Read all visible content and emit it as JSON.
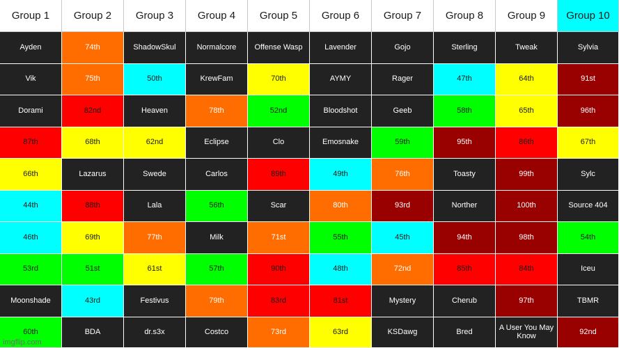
{
  "colors": {
    "dark": "#222222",
    "orange": "#ff6d00",
    "cyan": "#00ffff",
    "yellow": "#ffff00",
    "red": "#ff0000",
    "green": "#00ff00",
    "maroon": "#990000",
    "header": "#ffffff"
  },
  "headers": [
    {
      "label": "Group 1",
      "color": "header"
    },
    {
      "label": "Group 2",
      "color": "header"
    },
    {
      "label": "Group 3",
      "color": "header"
    },
    {
      "label": "Group 4",
      "color": "header"
    },
    {
      "label": "Group 5",
      "color": "header"
    },
    {
      "label": "Group 6",
      "color": "header"
    },
    {
      "label": "Group 7",
      "color": "header"
    },
    {
      "label": "Group 8",
      "color": "header"
    },
    {
      "label": "Group 9",
      "color": "header"
    },
    {
      "label": "Group 10",
      "color": "cyan"
    }
  ],
  "rows": [
    [
      {
        "text": "Ayden",
        "color": "dark"
      },
      {
        "text": "74th",
        "color": "orange"
      },
      {
        "text": "ShadowSkul",
        "color": "dark"
      },
      {
        "text": "Normalcore",
        "color": "dark"
      },
      {
        "text": "Offense Wasp",
        "color": "dark"
      },
      {
        "text": "Lavender",
        "color": "dark"
      },
      {
        "text": "Gojo",
        "color": "dark"
      },
      {
        "text": "Sterling",
        "color": "dark"
      },
      {
        "text": "Tweak",
        "color": "dark"
      },
      {
        "text": "Sylvia",
        "color": "dark"
      }
    ],
    [
      {
        "text": "Vik",
        "color": "dark"
      },
      {
        "text": "75th",
        "color": "orange"
      },
      {
        "text": "50th",
        "color": "cyan"
      },
      {
        "text": "KrewFam",
        "color": "dark"
      },
      {
        "text": "70th",
        "color": "yellow"
      },
      {
        "text": "AYMY",
        "color": "dark"
      },
      {
        "text": "Rager",
        "color": "dark"
      },
      {
        "text": "47th",
        "color": "cyan"
      },
      {
        "text": "64th",
        "color": "yellow"
      },
      {
        "text": "91st",
        "color": "maroon"
      }
    ],
    [
      {
        "text": "Dorami",
        "color": "dark"
      },
      {
        "text": "82nd",
        "color": "red"
      },
      {
        "text": "Heaven",
        "color": "dark"
      },
      {
        "text": "78th",
        "color": "orange"
      },
      {
        "text": "52nd",
        "color": "green"
      },
      {
        "text": "Bloodshot",
        "color": "dark"
      },
      {
        "text": "Geeb",
        "color": "dark"
      },
      {
        "text": "58th",
        "color": "green"
      },
      {
        "text": "65th",
        "color": "yellow"
      },
      {
        "text": "96th",
        "color": "maroon"
      }
    ],
    [
      {
        "text": "87th",
        "color": "red"
      },
      {
        "text": "68th",
        "color": "yellow"
      },
      {
        "text": "62nd",
        "color": "yellow"
      },
      {
        "text": "Eclipse",
        "color": "dark"
      },
      {
        "text": "Clo",
        "color": "dark"
      },
      {
        "text": "Emosnake",
        "color": "dark"
      },
      {
        "text": "59th",
        "color": "green"
      },
      {
        "text": "95th",
        "color": "maroon"
      },
      {
        "text": "86th",
        "color": "red"
      },
      {
        "text": "67th",
        "color": "yellow"
      }
    ],
    [
      {
        "text": "66th",
        "color": "yellow"
      },
      {
        "text": "Lazarus",
        "color": "dark"
      },
      {
        "text": "Swede",
        "color": "dark"
      },
      {
        "text": "Carlos",
        "color": "dark"
      },
      {
        "text": "89th",
        "color": "red"
      },
      {
        "text": "49th",
        "color": "cyan"
      },
      {
        "text": "76th",
        "color": "orange"
      },
      {
        "text": "Toasty",
        "color": "dark"
      },
      {
        "text": "99th",
        "color": "maroon"
      },
      {
        "text": "Sylc",
        "color": "dark"
      }
    ],
    [
      {
        "text": "44th",
        "color": "cyan"
      },
      {
        "text": "88th",
        "color": "red"
      },
      {
        "text": "Lala",
        "color": "dark"
      },
      {
        "text": "56th",
        "color": "green"
      },
      {
        "text": "Scar",
        "color": "dark"
      },
      {
        "text": "80th",
        "color": "orange"
      },
      {
        "text": "93rd",
        "color": "maroon"
      },
      {
        "text": "Norther",
        "color": "dark"
      },
      {
        "text": "100th",
        "color": "maroon"
      },
      {
        "text": "Source 404",
        "color": "dark"
      }
    ],
    [
      {
        "text": "46th",
        "color": "cyan"
      },
      {
        "text": "69th",
        "color": "yellow"
      },
      {
        "text": "77th",
        "color": "orange"
      },
      {
        "text": "Milk",
        "color": "dark"
      },
      {
        "text": "71st",
        "color": "orange"
      },
      {
        "text": "55th",
        "color": "green"
      },
      {
        "text": "45th",
        "color": "cyan"
      },
      {
        "text": "94th",
        "color": "maroon"
      },
      {
        "text": "98th",
        "color": "maroon"
      },
      {
        "text": "54th",
        "color": "green"
      }
    ],
    [
      {
        "text": "53rd",
        "color": "green"
      },
      {
        "text": "51st",
        "color": "green"
      },
      {
        "text": "61st",
        "color": "yellow"
      },
      {
        "text": "57th",
        "color": "green"
      },
      {
        "text": "90th",
        "color": "red"
      },
      {
        "text": "48th",
        "color": "cyan"
      },
      {
        "text": "72nd",
        "color": "orange"
      },
      {
        "text": "85th",
        "color": "red"
      },
      {
        "text": "84th",
        "color": "red"
      },
      {
        "text": "Iceu",
        "color": "dark"
      }
    ],
    [
      {
        "text": "Moonshade",
        "color": "dark"
      },
      {
        "text": "43rd",
        "color": "cyan"
      },
      {
        "text": "Festivus",
        "color": "dark"
      },
      {
        "text": "79th",
        "color": "orange"
      },
      {
        "text": "83rd",
        "color": "red"
      },
      {
        "text": "81st",
        "color": "red"
      },
      {
        "text": "Mystery",
        "color": "dark"
      },
      {
        "text": "Cherub",
        "color": "dark"
      },
      {
        "text": "97th",
        "color": "maroon"
      },
      {
        "text": "TBMR",
        "color": "dark"
      }
    ],
    [
      {
        "text": "60th",
        "color": "green"
      },
      {
        "text": "BDA",
        "color": "dark"
      },
      {
        "text": "dr.s3x",
        "color": "dark"
      },
      {
        "text": "Costco",
        "color": "dark"
      },
      {
        "text": "73rd",
        "color": "orange"
      },
      {
        "text": "63rd",
        "color": "yellow"
      },
      {
        "text": "KSDawg",
        "color": "dark"
      },
      {
        "text": "Bred",
        "color": "dark"
      },
      {
        "text": "A User You May Know",
        "color": "dark"
      },
      {
        "text": "92nd",
        "color": "maroon"
      }
    ]
  ],
  "watermark": "imgflip.com"
}
